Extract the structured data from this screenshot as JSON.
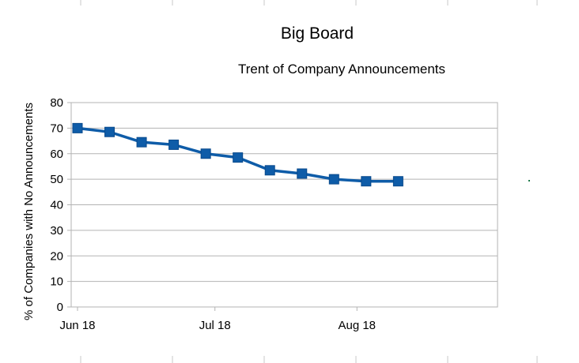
{
  "chart_data": {
    "type": "line",
    "title": "Big Board",
    "subtitle": "Trent of Company Announcements",
    "xlabel": "",
    "ylabel": "% of Companies with No Announcements",
    "ylim": [
      0,
      80
    ],
    "yticks": [
      "0",
      "10",
      "20",
      "30",
      "40",
      "50",
      "60",
      "70",
      "80"
    ],
    "xlim": [
      "2018-06-01",
      "2018-08-31"
    ],
    "xticks": [
      {
        "label": "Jun 18",
        "date": "2018-06-01"
      },
      {
        "label": "Jul 18",
        "date": "2018-07-01"
      },
      {
        "label": "Aug 18",
        "date": "2018-08-01"
      }
    ],
    "grid": true,
    "legend": "none",
    "series": [
      {
        "color": "#0e5ca8",
        "marker": "square",
        "x": [
          "2018-06-01",
          "2018-06-08",
          "2018-06-15",
          "2018-06-22",
          "2018-06-29",
          "2018-07-06",
          "2018-07-13",
          "2018-07-20",
          "2018-07-27",
          "2018-08-03",
          "2018-08-10"
        ],
        "y": [
          70,
          68.5,
          64.5,
          63.5,
          60,
          58.5,
          53.5,
          52.2,
          50,
          49.2,
          49.2
        ]
      }
    ]
  }
}
